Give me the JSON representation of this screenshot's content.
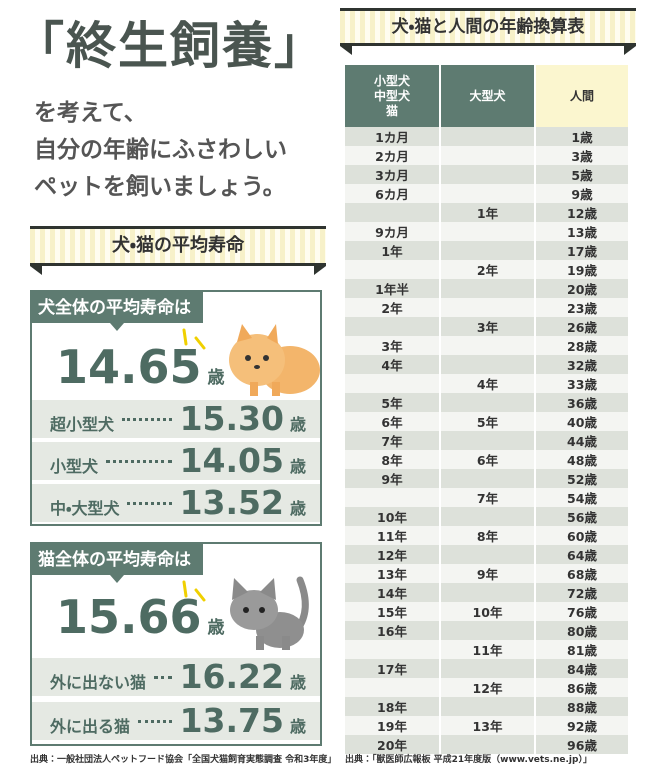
{
  "title": "「終生飼養」",
  "subtitle": [
    "を考えて、",
    "自分の年齢にふさわしい",
    "ペットを飼いましょう。"
  ],
  "lifespan": {
    "title": "犬・猫の平均寿命",
    "groups": [
      {
        "heading": "犬全体の平均寿命は",
        "value": "14.65",
        "unit": "歳",
        "rows": [
          {
            "label": "超小型犬",
            "value": "15.30",
            "unit": "歳"
          },
          {
            "label": "小型犬",
            "value": "14.05",
            "unit": "歳"
          },
          {
            "label": "中・大型犬",
            "value": "13.52",
            "unit": "歳"
          }
        ]
      },
      {
        "heading": "猫全体の平均寿命は",
        "value": "15.66",
        "unit": "歳",
        "rows": [
          {
            "label": "外に出ない猫",
            "value": "16.22",
            "unit": "歳"
          },
          {
            "label": "外に出る猫",
            "value": "13.75",
            "unit": "歳"
          }
        ]
      }
    ],
    "source": "出典：一般社団法人ペットフード協会「全国犬猫飼育実態調査 令和3年度」"
  },
  "age_table": {
    "title": "犬・猫と人間の年齢換算表",
    "headers": [
      [
        "小型犬",
        "中型犬",
        "猫"
      ],
      [
        "大型犬"
      ],
      [
        "人間"
      ]
    ],
    "rows": [
      [
        "1カ月",
        null,
        "1歳"
      ],
      [
        "2カ月",
        null,
        "3歳"
      ],
      [
        "3カ月",
        null,
        "5歳"
      ],
      [
        "6カ月",
        null,
        "9歳"
      ],
      [
        null,
        "1年",
        "12歳"
      ],
      [
        "9カ月",
        null,
        "13歳"
      ],
      [
        "1年",
        null,
        "17歳"
      ],
      [
        null,
        "2年",
        "19歳"
      ],
      [
        "1年半",
        null,
        "20歳"
      ],
      [
        "2年",
        null,
        "23歳"
      ],
      [
        null,
        "3年",
        "26歳"
      ],
      [
        "3年",
        null,
        "28歳"
      ],
      [
        "4年",
        null,
        "32歳"
      ],
      [
        null,
        "4年",
        "33歳"
      ],
      [
        "5年",
        null,
        "36歳"
      ],
      [
        "6年",
        "5年",
        "40歳"
      ],
      [
        "7年",
        null,
        "44歳"
      ],
      [
        "8年",
        "6年",
        "48歳"
      ],
      [
        "9年",
        null,
        "52歳"
      ],
      [
        null,
        "7年",
        "54歳"
      ],
      [
        "10年",
        null,
        "56歳"
      ],
      [
        "11年",
        "8年",
        "60歳"
      ],
      [
        "12年",
        null,
        "64歳"
      ],
      [
        "13年",
        "9年",
        "68歳"
      ],
      [
        "14年",
        null,
        "72歳"
      ],
      [
        "15年",
        "10年",
        "76歳"
      ],
      [
        "16年",
        null,
        "80歳"
      ],
      [
        null,
        "11年",
        "81歳"
      ],
      [
        "17年",
        null,
        "84歳"
      ],
      [
        null,
        "12年",
        "86歳"
      ],
      [
        "18年",
        null,
        "88歳"
      ],
      [
        "19年",
        "13年",
        "92歳"
      ],
      [
        "20年",
        null,
        "96歳"
      ]
    ],
    "source": "出典：「獣医師広報板 平成21年度版（www.vets.ne.jp）」"
  }
}
